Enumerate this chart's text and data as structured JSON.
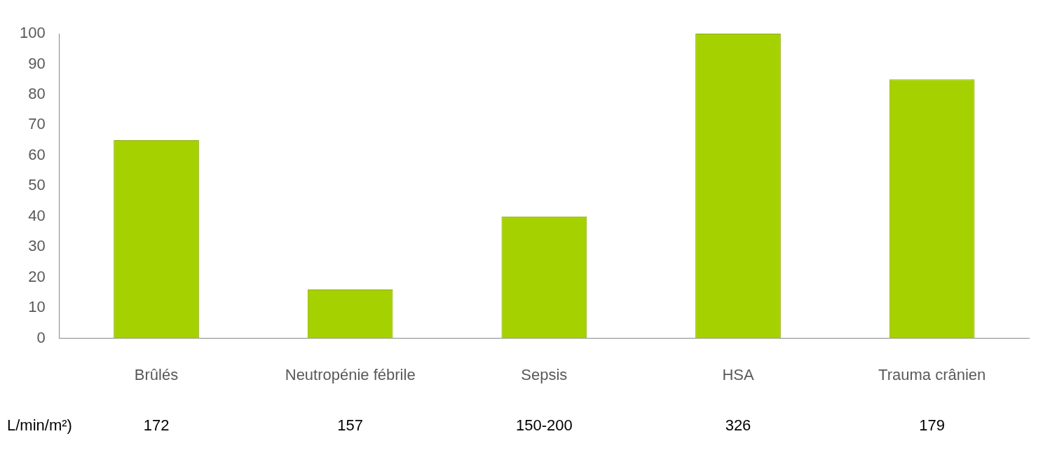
{
  "chart_data": {
    "type": "bar",
    "categories": [
      "Brûlés",
      "Neutropénie fébrile",
      "Sepsis",
      "HSA",
      "Trauma crânien"
    ],
    "values": [
      65,
      16,
      40,
      100,
      85
    ],
    "color": "#a6d100",
    "ylim": [
      0,
      100
    ],
    "yticks": [
      0,
      10,
      20,
      30,
      40,
      50,
      60,
      70,
      80,
      90,
      100
    ],
    "grid": false,
    "legend": false,
    "annotations": [
      "L/min/m²)",
      "172",
      "157",
      "150-200",
      "326",
      "179"
    ]
  }
}
